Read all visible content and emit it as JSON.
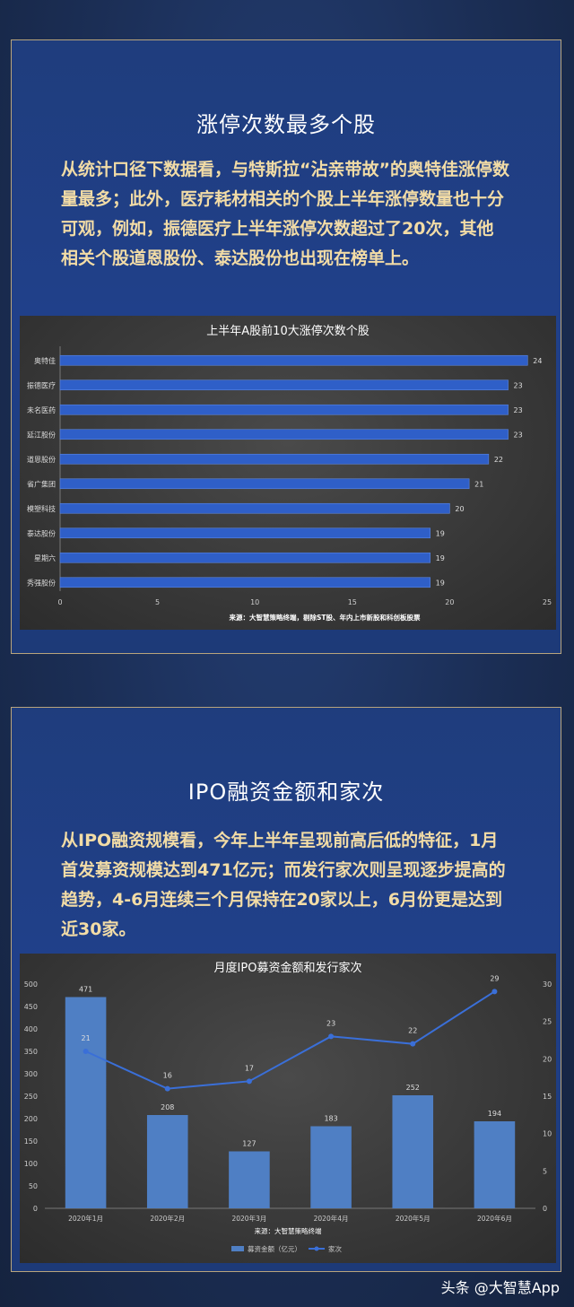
{
  "section1": {
    "title": "涨停次数最多个股",
    "text": "从统计口径下数据看，与特斯拉“沾亲带故”的奥特佳涨停数量最多；此外，医疗耗材相关的个股上半年涨停数量也十分可观，例如，振德医疗上半年涨停次数超过了20次，其他相关个股道恩股份、泰达股份也出现在榜单上。"
  },
  "section2": {
    "title": "IPO融资金额和家次",
    "text": "从IPO融资规模看，今年上半年呈现前高后低的特征，1月首发募资规模达到471亿元；而发行家次则呈现逐步提高的趋势，4-6月连续三个月保持在20家以上，6月份更是达到近30家。"
  },
  "footer": {
    "text": "头条 @大智慧App"
  },
  "colors": {
    "bar": "#2f5fc8",
    "column": "#4f7fc4",
    "line": "#3a6fd8",
    "text_gold": "#f2dca6"
  },
  "chart_data": [
    {
      "type": "bar",
      "orientation": "horizontal",
      "title": "上半年A股前10大涨停次数个股",
      "source_note": "来源：大智慧策略终端，剔除ST股、年内上市新股和科创板股票",
      "categories": [
        "奥特佳",
        "振德医疗",
        "未名医药",
        "延江股份",
        "道恩股份",
        "省广集团",
        "模塑科技",
        "泰达股份",
        "星期六",
        "秀强股份"
      ],
      "values": [
        24,
        23,
        23,
        23,
        22,
        21,
        20,
        19,
        19,
        19
      ],
      "xlim": [
        0,
        25
      ],
      "xticks": [
        0,
        5,
        10,
        15,
        20,
        25
      ],
      "grid": false
    },
    {
      "type": "bar+line",
      "title": "月度IPO募资金额和发行家次",
      "source_note": "来源：大智慧策略终端",
      "categories": [
        "2020年1月",
        "2020年2月",
        "2020年3月",
        "2020年4月",
        "2020年5月",
        "2020年6月"
      ],
      "series": [
        {
          "name": "募资金额（亿元）",
          "type": "bar",
          "axis": "left",
          "values": [
            471,
            208,
            127,
            183,
            252,
            194
          ]
        },
        {
          "name": "家次",
          "type": "line",
          "axis": "right",
          "values": [
            21,
            16,
            17,
            23,
            22,
            29
          ]
        }
      ],
      "ylim_left": [
        0,
        500
      ],
      "yticks_left": [
        0,
        50,
        100,
        150,
        200,
        250,
        300,
        350,
        400,
        450,
        500
      ],
      "ylim_right": [
        0,
        30
      ],
      "yticks_right": [
        0,
        5,
        10,
        15,
        20,
        25,
        30
      ],
      "legend": "bottom",
      "grid": false
    }
  ]
}
